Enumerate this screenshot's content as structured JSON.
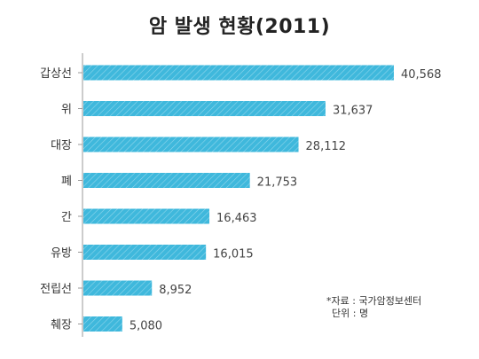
{
  "chart_data": {
    "type": "bar",
    "orientation": "horizontal",
    "title": "암 발생 현황(2011)",
    "categories": [
      "갑상선",
      "위",
      "대장",
      "폐",
      "간",
      "유방",
      "전립선",
      "췌장"
    ],
    "values": [
      40568,
      31637,
      28112,
      21753,
      16463,
      16015,
      8952,
      5080
    ],
    "value_labels": [
      "40,568",
      "31,637",
      "28,112",
      "21,753",
      "16,463",
      "16,015",
      "8,952",
      "5,080"
    ],
    "xlim": [
      0,
      45000
    ],
    "bar_color": "#3fb8dc",
    "grid": false,
    "legend": "none"
  },
  "notes": {
    "source": "*자료 : 국가암정보센터",
    "unit": "단위 : 명"
  }
}
